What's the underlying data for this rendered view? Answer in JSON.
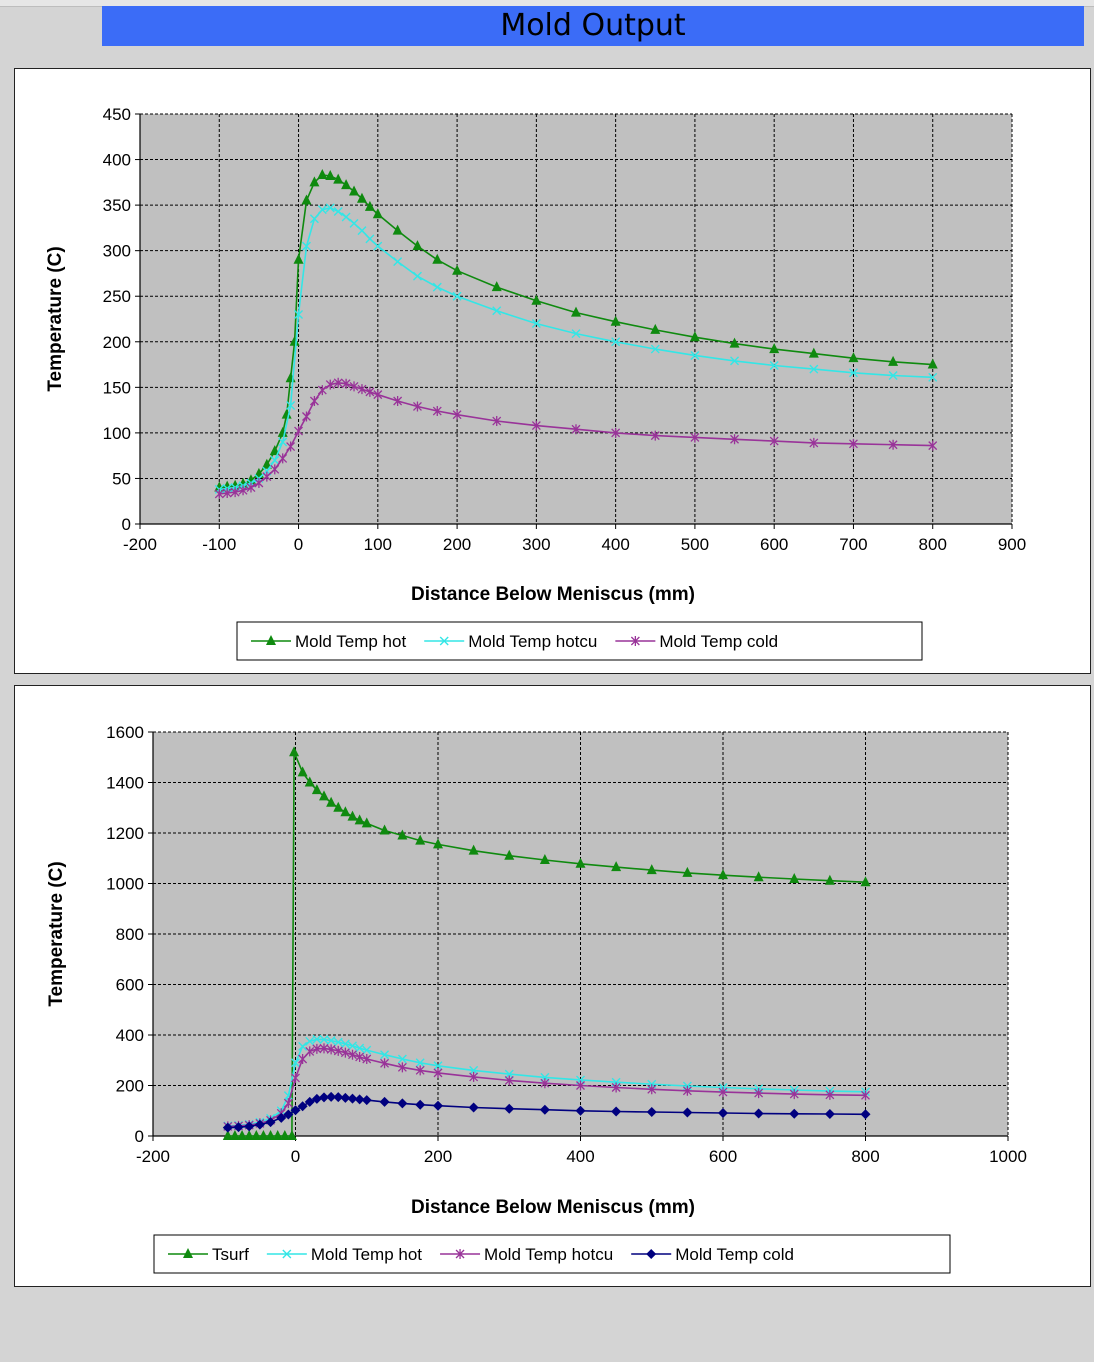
{
  "page": {
    "title": "Mold Output"
  },
  "chart_data": [
    {
      "type": "line",
      "title": "",
      "xlabel": "Distance Below Meniscus (mm)",
      "ylabel": "Temperature (C)",
      "xlim": [
        -200,
        900
      ],
      "ylim": [
        0,
        450
      ],
      "xticks": [
        -200,
        -100,
        0,
        100,
        200,
        300,
        400,
        500,
        600,
        700,
        800,
        900
      ],
      "yticks": [
        0,
        50,
        100,
        150,
        200,
        250,
        300,
        350,
        400,
        450
      ],
      "grid": true,
      "legend_position": "bottom",
      "series": [
        {
          "name": "Mold Temp hot",
          "color": "#0f8a0f",
          "marker": "triangle",
          "points": [
            [
              -100,
              40
            ],
            [
              -90,
              41
            ],
            [
              -80,
              42
            ],
            [
              -70,
              44
            ],
            [
              -60,
              48
            ],
            [
              -50,
              55
            ],
            [
              -40,
              65
            ],
            [
              -30,
              80
            ],
            [
              -20,
              100
            ],
            [
              -15,
              120
            ],
            [
              -10,
              160
            ],
            [
              -5,
              200
            ],
            [
              0,
              290
            ],
            [
              10,
              355
            ],
            [
              20,
              375
            ],
            [
              30,
              383
            ],
            [
              40,
              382
            ],
            [
              50,
              378
            ],
            [
              60,
              372
            ],
            [
              70,
              365
            ],
            [
              80,
              357
            ],
            [
              90,
              348
            ],
            [
              100,
              340
            ],
            [
              125,
              322
            ],
            [
              150,
              305
            ],
            [
              175,
              290
            ],
            [
              200,
              278
            ],
            [
              250,
              260
            ],
            [
              300,
              245
            ],
            [
              350,
              232
            ],
            [
              400,
              222
            ],
            [
              450,
              213
            ],
            [
              500,
              205
            ],
            [
              550,
              198
            ],
            [
              600,
              192
            ],
            [
              650,
              187
            ],
            [
              700,
              182
            ],
            [
              750,
              178
            ],
            [
              800,
              175
            ]
          ]
        },
        {
          "name": "Mold Temp  hotcu",
          "color": "#33e6e6",
          "marker": "x",
          "points": [
            [
              -100,
              38
            ],
            [
              -90,
              39
            ],
            [
              -80,
              40
            ],
            [
              -70,
              42
            ],
            [
              -60,
              45
            ],
            [
              -50,
              50
            ],
            [
              -40,
              58
            ],
            [
              -30,
              70
            ],
            [
              -20,
              90
            ],
            [
              -10,
              130
            ],
            [
              0,
              230
            ],
            [
              10,
              305
            ],
            [
              20,
              335
            ],
            [
              30,
              345
            ],
            [
              40,
              347
            ],
            [
              50,
              343
            ],
            [
              60,
              337
            ],
            [
              70,
              330
            ],
            [
              80,
              322
            ],
            [
              90,
              313
            ],
            [
              100,
              305
            ],
            [
              125,
              288
            ],
            [
              150,
              272
            ],
            [
              175,
              260
            ],
            [
              200,
              250
            ],
            [
              250,
              234
            ],
            [
              300,
              220
            ],
            [
              350,
              209
            ],
            [
              400,
              200
            ],
            [
              450,
              192
            ],
            [
              500,
              185
            ],
            [
              550,
              179
            ],
            [
              600,
              174
            ],
            [
              650,
              170
            ],
            [
              700,
              166
            ],
            [
              750,
              163
            ],
            [
              800,
              161
            ]
          ]
        },
        {
          "name": "Mold Temp cold",
          "color": "#993399",
          "marker": "star",
          "points": [
            [
              -100,
              33
            ],
            [
              -90,
              34
            ],
            [
              -80,
              35
            ],
            [
              -70,
              37
            ],
            [
              -60,
              40
            ],
            [
              -50,
              45
            ],
            [
              -40,
              52
            ],
            [
              -30,
              60
            ],
            [
              -20,
              72
            ],
            [
              -10,
              85
            ],
            [
              0,
              102
            ],
            [
              10,
              118
            ],
            [
              20,
              135
            ],
            [
              30,
              147
            ],
            [
              40,
              153
            ],
            [
              50,
              155
            ],
            [
              60,
              154
            ],
            [
              70,
              151
            ],
            [
              80,
              148
            ],
            [
              90,
              145
            ],
            [
              100,
              142
            ],
            [
              125,
              135
            ],
            [
              150,
              129
            ],
            [
              175,
              124
            ],
            [
              200,
              120
            ],
            [
              250,
              113
            ],
            [
              300,
              108
            ],
            [
              350,
              104
            ],
            [
              400,
              100
            ],
            [
              450,
              97
            ],
            [
              500,
              95
            ],
            [
              550,
              93
            ],
            [
              600,
              91
            ],
            [
              650,
              89
            ],
            [
              700,
              88
            ],
            [
              750,
              87
            ],
            [
              800,
              86
            ]
          ]
        }
      ]
    },
    {
      "type": "line",
      "title": "",
      "xlabel": "Distance Below Meniscus (mm)",
      "ylabel": "Temperature (C)",
      "xlim": [
        -200,
        1000
      ],
      "ylim": [
        0,
        1600
      ],
      "xticks": [
        -200,
        0,
        200,
        400,
        600,
        800,
        1000
      ],
      "yticks": [
        0,
        200,
        400,
        600,
        800,
        1000,
        1200,
        1400,
        1600
      ],
      "grid": true,
      "legend_position": "bottom",
      "series": [
        {
          "name": "Tsurf",
          "color": "#0f8a0f",
          "marker": "triangle",
          "points": [
            [
              -95,
              0
            ],
            [
              -85,
              0
            ],
            [
              -75,
              0
            ],
            [
              -65,
              0
            ],
            [
              -55,
              0
            ],
            [
              -45,
              0
            ],
            [
              -35,
              0
            ],
            [
              -25,
              0
            ],
            [
              -15,
              0
            ],
            [
              -5,
              0
            ],
            [
              -2,
              1520
            ],
            [
              10,
              1440
            ],
            [
              20,
              1400
            ],
            [
              30,
              1370
            ],
            [
              40,
              1345
            ],
            [
              50,
              1320
            ],
            [
              60,
              1300
            ],
            [
              70,
              1282
            ],
            [
              80,
              1265
            ],
            [
              90,
              1250
            ],
            [
              100,
              1238
            ],
            [
              125,
              1210
            ],
            [
              150,
              1190
            ],
            [
              175,
              1170
            ],
            [
              200,
              1155
            ],
            [
              250,
              1130
            ],
            [
              300,
              1110
            ],
            [
              350,
              1093
            ],
            [
              400,
              1078
            ],
            [
              450,
              1065
            ],
            [
              500,
              1053
            ],
            [
              550,
              1042
            ],
            [
              600,
              1033
            ],
            [
              650,
              1025
            ],
            [
              700,
              1018
            ],
            [
              750,
              1011
            ],
            [
              800,
              1005
            ]
          ]
        },
        {
          "name": "Mold Temp hot",
          "color": "#33e6e6",
          "marker": "x",
          "points": [
            [
              -95,
              40
            ],
            [
              -80,
              42
            ],
            [
              -65,
              46
            ],
            [
              -50,
              55
            ],
            [
              -35,
              70
            ],
            [
              -20,
              100
            ],
            [
              -10,
              160
            ],
            [
              0,
              290
            ],
            [
              10,
              355
            ],
            [
              20,
              375
            ],
            [
              30,
              383
            ],
            [
              40,
              382
            ],
            [
              50,
              378
            ],
            [
              60,
              372
            ],
            [
              70,
              365
            ],
            [
              80,
              357
            ],
            [
              90,
              348
            ],
            [
              100,
              340
            ],
            [
              125,
              322
            ],
            [
              150,
              305
            ],
            [
              175,
              290
            ],
            [
              200,
              278
            ],
            [
              250,
              260
            ],
            [
              300,
              245
            ],
            [
              350,
              232
            ],
            [
              400,
              222
            ],
            [
              450,
              213
            ],
            [
              500,
              205
            ],
            [
              550,
              198
            ],
            [
              600,
              192
            ],
            [
              650,
              187
            ],
            [
              700,
              182
            ],
            [
              750,
              178
            ],
            [
              800,
              175
            ]
          ]
        },
        {
          "name": "Mold Temp  hotcu",
          "color": "#993399",
          "marker": "star",
          "points": [
            [
              -95,
              38
            ],
            [
              -80,
              40
            ],
            [
              -65,
              43
            ],
            [
              -50,
              50
            ],
            [
              -35,
              62
            ],
            [
              -20,
              90
            ],
            [
              -10,
              130
            ],
            [
              0,
              230
            ],
            [
              10,
              305
            ],
            [
              20,
              335
            ],
            [
              30,
              345
            ],
            [
              40,
              347
            ],
            [
              50,
              343
            ],
            [
              60,
              337
            ],
            [
              70,
              330
            ],
            [
              80,
              322
            ],
            [
              90,
              313
            ],
            [
              100,
              305
            ],
            [
              125,
              288
            ],
            [
              150,
              272
            ],
            [
              175,
              260
            ],
            [
              200,
              250
            ],
            [
              250,
              234
            ],
            [
              300,
              220
            ],
            [
              350,
              209
            ],
            [
              400,
              200
            ],
            [
              450,
              192
            ],
            [
              500,
              185
            ],
            [
              550,
              179
            ],
            [
              600,
              174
            ],
            [
              650,
              170
            ],
            [
              700,
              166
            ],
            [
              750,
              163
            ],
            [
              800,
              161
            ]
          ]
        },
        {
          "name": "Mold Temp cold",
          "color": "#00007f",
          "marker": "diamond",
          "points": [
            [
              -95,
              33
            ],
            [
              -80,
              35
            ],
            [
              -65,
              38
            ],
            [
              -50,
              45
            ],
            [
              -35,
              55
            ],
            [
              -20,
              72
            ],
            [
              -10,
              85
            ],
            [
              0,
              102
            ],
            [
              10,
              118
            ],
            [
              20,
              135
            ],
            [
              30,
              147
            ],
            [
              40,
              153
            ],
            [
              50,
              155
            ],
            [
              60,
              154
            ],
            [
              70,
              151
            ],
            [
              80,
              148
            ],
            [
              90,
              145
            ],
            [
              100,
              142
            ],
            [
              125,
              135
            ],
            [
              150,
              129
            ],
            [
              175,
              124
            ],
            [
              200,
              120
            ],
            [
              250,
              113
            ],
            [
              300,
              108
            ],
            [
              350,
              104
            ],
            [
              400,
              100
            ],
            [
              450,
              97
            ],
            [
              500,
              95
            ],
            [
              550,
              93
            ],
            [
              600,
              91
            ],
            [
              650,
              89
            ],
            [
              700,
              88
            ],
            [
              750,
              87
            ],
            [
              800,
              86
            ]
          ]
        }
      ]
    }
  ]
}
